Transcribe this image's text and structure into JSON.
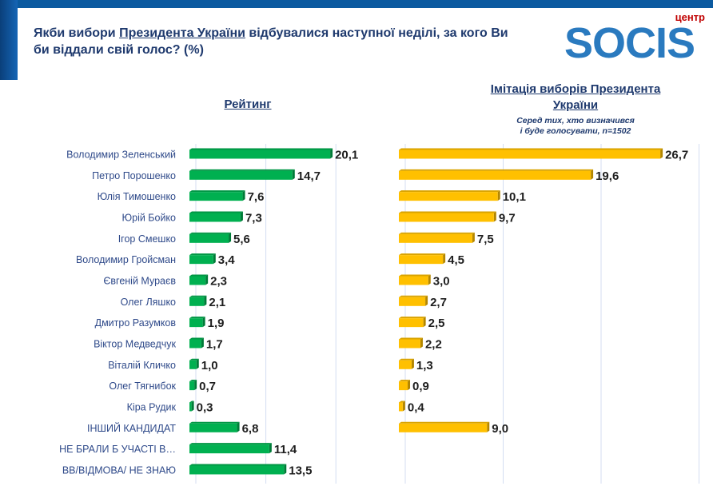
{
  "header": {
    "title_pre": "Якби вибори ",
    "title_link": "Президента України",
    "title_post": " відбувалися наступної неділі, за кого Ви би віддали свій голос? (%)"
  },
  "logo": {
    "small": "центр",
    "word": "SOCIS"
  },
  "colors": {
    "green": "#00b050",
    "yellow": "#ffc000",
    "label": "#2f4a8a",
    "title": "#1f3a6e"
  },
  "chart_data": [
    {
      "type": "bar",
      "orientation": "horizontal",
      "title": "Рейтинг",
      "subtitle": "",
      "categories": [
        "Володимир Зеленський",
        "Петро Порошенко",
        "Юлія Тимошенко",
        "Юрій Бойко",
        "Ігор Смешко",
        "Володимир Гройсман",
        "Євгеній Мураєв",
        "Олег Ляшко",
        "Дмитро Разумков",
        "Віктор Медведчук",
        "Віталій Кличко",
        "Олег Тягнибок",
        "Кіра Рудик",
        "ІНШИЙ КАНДИДАТ",
        "НЕ БРАЛИ Б УЧАСТІ В…",
        "ВВ/ВІДМОВА/ НЕ ЗНАЮ"
      ],
      "values": [
        20.1,
        14.7,
        7.6,
        7.3,
        5.6,
        3.4,
        2.3,
        2.1,
        1.9,
        1.7,
        1.0,
        0.7,
        0.3,
        6.8,
        11.4,
        13.5
      ],
      "labels": [
        "20,1",
        "14,7",
        "7,6",
        "7,3",
        "5,6",
        "3,4",
        "2,3",
        "2,1",
        "1,9",
        "1,7",
        "1,0",
        "0,7",
        "0,3",
        "6,8",
        "11,4",
        "13,5"
      ],
      "color": "#00b050",
      "xlim": [
        0,
        25
      ],
      "grid": true
    },
    {
      "type": "bar",
      "orientation": "horizontal",
      "title": "Імітація виборів Президента України",
      "subtitle_line1": "Серед тих, хто визначився",
      "subtitle_line2": "і буде голосувати, n=1502",
      "categories": [
        "Володимир Зеленський",
        "Петро Порошенко",
        "Юлія Тимошенко",
        "Юрій Бойко",
        "Ігор Смешко",
        "Володимир Гройсман",
        "Євгеній Мураєв",
        "Олег Ляшко",
        "Дмитро Разумков",
        "Віктор Медведчук",
        "Віталій Кличко",
        "Олег Тягнибок",
        "Кіра Рудик",
        "ІНШИЙ КАНДИДАТ"
      ],
      "values": [
        26.7,
        19.6,
        10.1,
        9.7,
        7.5,
        4.5,
        3.0,
        2.7,
        2.5,
        2.2,
        1.3,
        0.9,
        0.4,
        9.0
      ],
      "labels": [
        "26,7",
        "19,6",
        "10,1",
        "9,7",
        "7,5",
        "4,5",
        "3,0",
        "2,7",
        "2,5",
        "2,2",
        "1,3",
        "0,9",
        "0,4",
        "9,0"
      ],
      "color": "#ffc000",
      "xlim": [
        0,
        30
      ],
      "grid": true
    }
  ]
}
